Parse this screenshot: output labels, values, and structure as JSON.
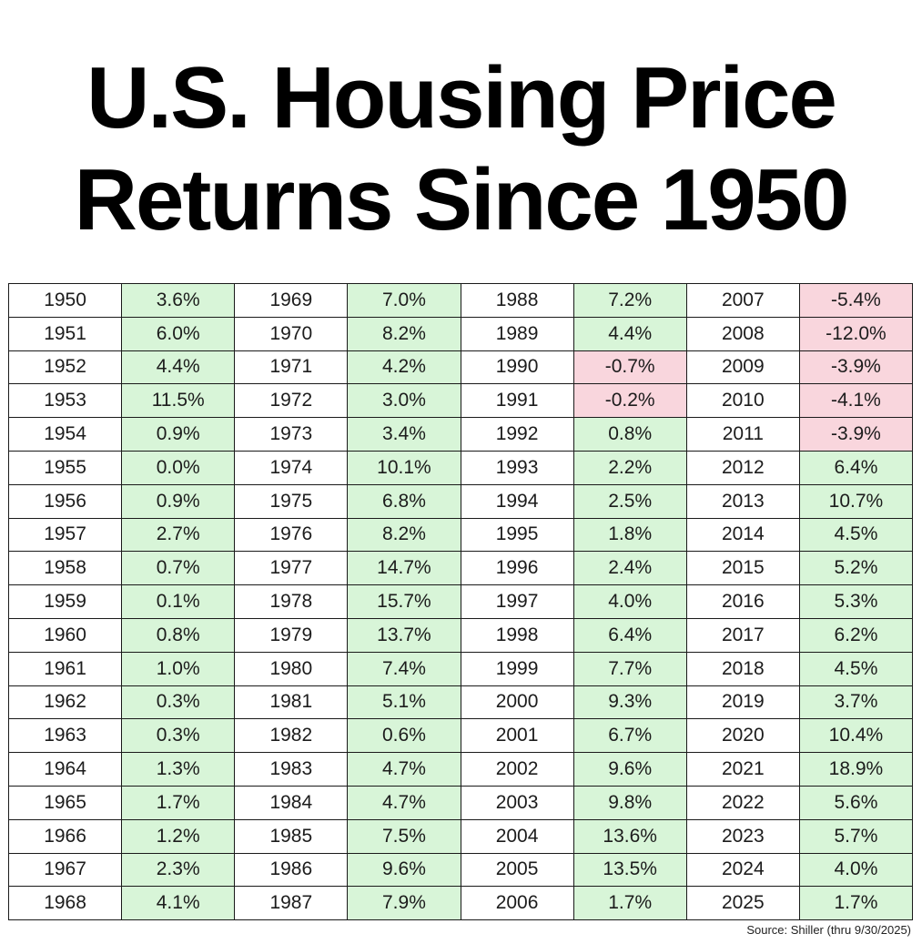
{
  "title": {
    "line1": "U.S. Housing Price",
    "line2": "Returns Since 1950"
  },
  "table": {
    "columns": [
      {
        "rows": [
          {
            "year": "1950",
            "ret": "3.6%"
          },
          {
            "year": "1951",
            "ret": "6.0%"
          },
          {
            "year": "1952",
            "ret": "4.4%"
          },
          {
            "year": "1953",
            "ret": "11.5%"
          },
          {
            "year": "1954",
            "ret": "0.9%"
          },
          {
            "year": "1955",
            "ret": "0.0%"
          },
          {
            "year": "1956",
            "ret": "0.9%"
          },
          {
            "year": "1957",
            "ret": "2.7%"
          },
          {
            "year": "1958",
            "ret": "0.7%"
          },
          {
            "year": "1959",
            "ret": "0.1%"
          },
          {
            "year": "1960",
            "ret": "0.8%"
          },
          {
            "year": "1961",
            "ret": "1.0%"
          },
          {
            "year": "1962",
            "ret": "0.3%"
          },
          {
            "year": "1963",
            "ret": "0.3%"
          },
          {
            "year": "1964",
            "ret": "1.3%"
          },
          {
            "year": "1965",
            "ret": "1.7%"
          },
          {
            "year": "1966",
            "ret": "1.2%"
          },
          {
            "year": "1967",
            "ret": "2.3%"
          },
          {
            "year": "1968",
            "ret": "4.1%"
          }
        ]
      },
      {
        "rows": [
          {
            "year": "1969",
            "ret": "7.0%"
          },
          {
            "year": "1970",
            "ret": "8.2%"
          },
          {
            "year": "1971",
            "ret": "4.2%"
          },
          {
            "year": "1972",
            "ret": "3.0%"
          },
          {
            "year": "1973",
            "ret": "3.4%"
          },
          {
            "year": "1974",
            "ret": "10.1%"
          },
          {
            "year": "1975",
            "ret": "6.8%"
          },
          {
            "year": "1976",
            "ret": "8.2%"
          },
          {
            "year": "1977",
            "ret": "14.7%"
          },
          {
            "year": "1978",
            "ret": "15.7%"
          },
          {
            "year": "1979",
            "ret": "13.7%"
          },
          {
            "year": "1980",
            "ret": "7.4%"
          },
          {
            "year": "1981",
            "ret": "5.1%"
          },
          {
            "year": "1982",
            "ret": "0.6%"
          },
          {
            "year": "1983",
            "ret": "4.7%"
          },
          {
            "year": "1984",
            "ret": "4.7%"
          },
          {
            "year": "1985",
            "ret": "7.5%"
          },
          {
            "year": "1986",
            "ret": "9.6%"
          },
          {
            "year": "1987",
            "ret": "7.9%"
          }
        ]
      },
      {
        "rows": [
          {
            "year": "1988",
            "ret": "7.2%"
          },
          {
            "year": "1989",
            "ret": "4.4%"
          },
          {
            "year": "1990",
            "ret": "-0.7%"
          },
          {
            "year": "1991",
            "ret": "-0.2%"
          },
          {
            "year": "1992",
            "ret": "0.8%"
          },
          {
            "year": "1993",
            "ret": "2.2%"
          },
          {
            "year": "1994",
            "ret": "2.5%"
          },
          {
            "year": "1995",
            "ret": "1.8%"
          },
          {
            "year": "1996",
            "ret": "2.4%"
          },
          {
            "year": "1997",
            "ret": "4.0%"
          },
          {
            "year": "1998",
            "ret": "6.4%"
          },
          {
            "year": "1999",
            "ret": "7.7%"
          },
          {
            "year": "2000",
            "ret": "9.3%"
          },
          {
            "year": "2001",
            "ret": "6.7%"
          },
          {
            "year": "2002",
            "ret": "9.6%"
          },
          {
            "year": "2003",
            "ret": "9.8%"
          },
          {
            "year": "2004",
            "ret": "13.6%"
          },
          {
            "year": "2005",
            "ret": "13.5%"
          },
          {
            "year": "2006",
            "ret": "1.7%"
          }
        ]
      },
      {
        "rows": [
          {
            "year": "2007",
            "ret": "-5.4%"
          },
          {
            "year": "2008",
            "ret": "-12.0%"
          },
          {
            "year": "2009",
            "ret": "-3.9%"
          },
          {
            "year": "2010",
            "ret": "-4.1%"
          },
          {
            "year": "2011",
            "ret": "-3.9%"
          },
          {
            "year": "2012",
            "ret": "6.4%"
          },
          {
            "year": "2013",
            "ret": "10.7%"
          },
          {
            "year": "2014",
            "ret": "4.5%"
          },
          {
            "year": "2015",
            "ret": "5.2%"
          },
          {
            "year": "2016",
            "ret": "5.3%"
          },
          {
            "year": "2017",
            "ret": "6.2%"
          },
          {
            "year": "2018",
            "ret": "4.5%"
          },
          {
            "year": "2019",
            "ret": "3.7%"
          },
          {
            "year": "2020",
            "ret": "10.4%"
          },
          {
            "year": "2021",
            "ret": "18.9%"
          },
          {
            "year": "2022",
            "ret": "5.6%"
          },
          {
            "year": "2023",
            "ret": "5.7%"
          },
          {
            "year": "2024",
            "ret": "4.0%"
          },
          {
            "year": "2025",
            "ret": "1.7%"
          }
        ]
      }
    ]
  },
  "colors": {
    "positive": "#d8f5d8",
    "negative": "#f9d6dd"
  },
  "source": "Source: Shiller (thru 9/30/2025)"
}
